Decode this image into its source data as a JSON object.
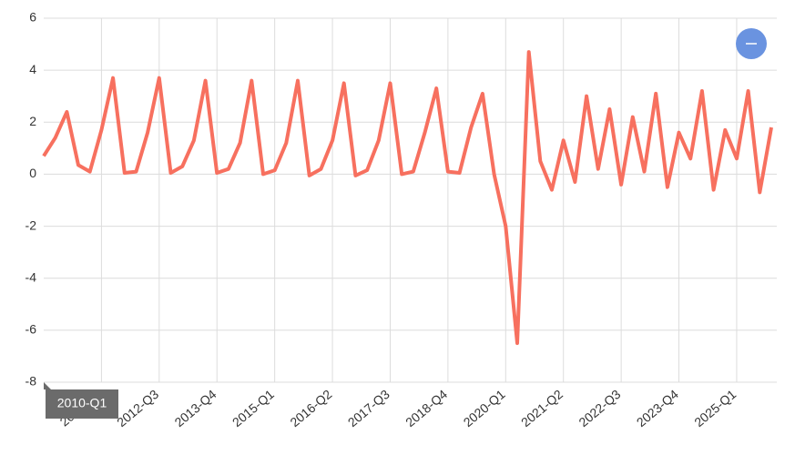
{
  "chart_data": {
    "type": "line",
    "categories": [
      "2010-Q1",
      null,
      null,
      null,
      null,
      "2011-Q2",
      null,
      null,
      null,
      null,
      "2012-Q3",
      null,
      null,
      null,
      null,
      "2013-Q4",
      null,
      null,
      null,
      null,
      "2015-Q1",
      null,
      null,
      null,
      null,
      "2016-Q2",
      null,
      null,
      null,
      null,
      "2017-Q3",
      null,
      null,
      null,
      null,
      "2018-Q4",
      null,
      null,
      null,
      null,
      "2020-Q1",
      null,
      null,
      null,
      null,
      "2021-Q2",
      null,
      null,
      null,
      null,
      "2022-Q3",
      null,
      null,
      null,
      null,
      "2023-Q4",
      null,
      null,
      null,
      null,
      "2025-Q1",
      null,
      null,
      null
    ],
    "series": [
      {
        "color": "#f7705f",
        "values": [
          0.7,
          1.4,
          2.4,
          0.35,
          0.1,
          1.7,
          3.7,
          0.05,
          0.1,
          1.6,
          3.7,
          0.05,
          0.3,
          1.3,
          3.6,
          0.05,
          0.2,
          1.2,
          3.6,
          0.0,
          0.15,
          1.2,
          3.6,
          -0.05,
          0.2,
          1.3,
          3.5,
          -0.05,
          0.15,
          1.3,
          3.5,
          0.0,
          0.1,
          1.6,
          3.3,
          0.1,
          0.05,
          1.8,
          3.1,
          0.0,
          -2.0,
          -6.5,
          4.7,
          0.5,
          -0.6,
          1.3,
          -0.3,
          3.0,
          0.2,
          2.5,
          -0.4,
          2.2,
          0.1,
          3.1,
          -0.5,
          1.6,
          0.6,
          3.2,
          -0.6,
          1.7,
          0.6,
          3.2,
          -0.7,
          1.8
        ]
      }
    ],
    "ylim": [
      -8,
      6
    ],
    "yticks": [
      -8,
      -6,
      -4,
      -2,
      0,
      2,
      4,
      6
    ],
    "grid": true
  }
}
